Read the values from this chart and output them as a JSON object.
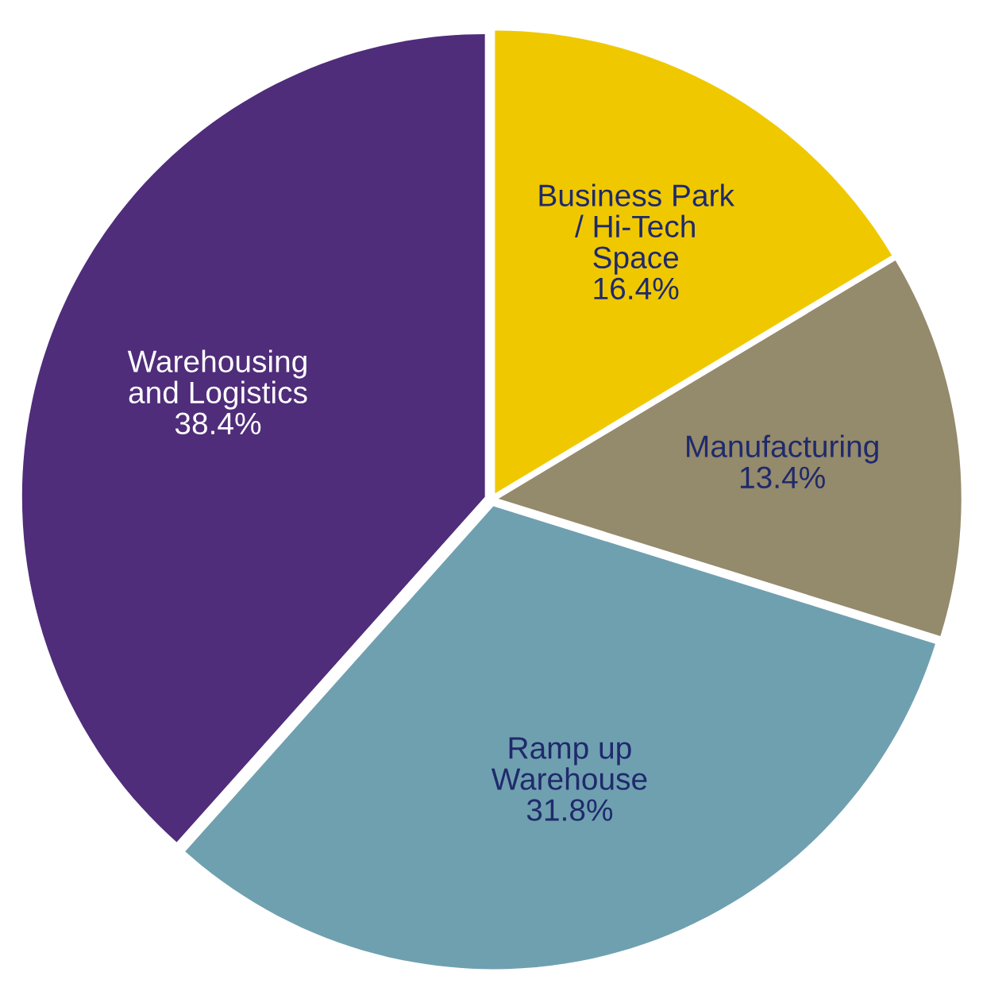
{
  "chart_data": {
    "type": "pie",
    "categories": [
      "Business Park\n/ Hi-Tech\nSpace",
      "Manufacturing",
      "Ramp up\nWarehouse",
      "Warehousing\nand Logistics"
    ],
    "values": [
      16.4,
      13.4,
      31.8,
      38.4
    ],
    "colors": [
      "#f0c800",
      "#948a6c",
      "#6fa0b0",
      "#4f2d7a"
    ],
    "value_labels": [
      "16.4%",
      "13.4%",
      "31.8%",
      "38.4%"
    ],
    "legend": false
  }
}
